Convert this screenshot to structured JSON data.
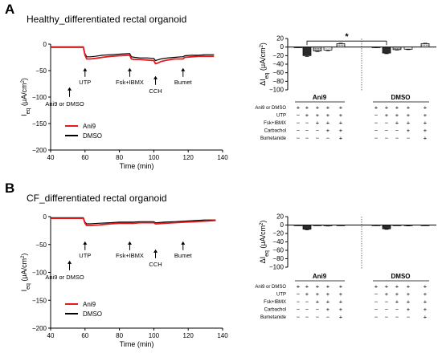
{
  "panels": [
    {
      "letter": "A",
      "title": "Healthy_differentiated rectal organoid",
      "trace": {
        "x_label": "Time (min)",
        "y_label_main": "I",
        "y_label_sub": "eq",
        "y_label_unit": "(μA/cm",
        "y_label_sup": "2",
        "y_label_close": ")",
        "x_ticks": [
          40,
          60,
          80,
          100,
          120,
          140
        ],
        "y_ticks": [
          0,
          -50,
          -100,
          -150,
          -200
        ],
        "xlim": [
          40,
          140
        ],
        "ylim": [
          -200,
          0
        ],
        "annotations": [
          {
            "text": "Ani9 or DMSO",
            "x": 51
          },
          {
            "text": "UTP",
            "x": 60
          },
          {
            "text": "Fsk+IBMX",
            "x": 86
          },
          {
            "text": "CCH",
            "x": 101
          },
          {
            "text": "Bumet",
            "x": 117
          }
        ],
        "legend": [
          "Ani9",
          "DMSO"
        ],
        "series": [
          {
            "name": "Ani9",
            "color": "#e8191c",
            "x": [
              40,
              59,
              60,
              61,
              63,
              66,
              70,
              75,
              80,
              85,
              86,
              87,
              89,
              92,
              96,
              100,
              101,
              102,
              104,
              108,
              112,
              116,
              117,
              118,
              122,
              126,
              130,
              135
            ],
            "y": [
              -6,
              -6,
              -21,
              -28,
              -28,
              -27,
              -25,
              -23,
              -22,
              -21,
              -21,
              -28,
              -29,
              -29,
              -30,
              -31,
              -37,
              -36,
              -33,
              -30,
              -28,
              -28,
              -28,
              -25,
              -24,
              -23,
              -23,
              -23
            ]
          },
          {
            "name": "DMSO",
            "color": "#000000",
            "x": [
              40,
              59,
              60,
              61,
              63,
              66,
              70,
              75,
              80,
              85,
              86,
              87,
              89,
              92,
              96,
              100,
              101,
              102,
              104,
              108,
              112,
              116,
              117,
              118,
              122,
              126,
              130,
              135
            ],
            "y": [
              -5,
              -5,
              -18,
              -24,
              -24,
              -23,
              -21,
              -20,
              -19,
              -18,
              -18,
              -24,
              -25,
              -26,
              -26,
              -27,
              -31,
              -30,
              -28,
              -26,
              -25,
              -24,
              -24,
              -22,
              -21,
              -21,
              -20,
              -20
            ]
          }
        ]
      },
      "bar": {
        "y_ticks": [
          20,
          0,
          -20,
          -40,
          -60,
          -80,
          -100
        ],
        "ylim": [
          -100,
          20
        ],
        "y_label_delta": "ΔI",
        "y_label_sub": "eq",
        "y_label_unit": "(μA/cm",
        "y_label_sup": "2",
        "y_label_close": ")",
        "significance": "*",
        "groups": [
          {
            "label": "Ani9",
            "values": [
              -0.5,
              -20,
              -9,
              -7,
              8
            ],
            "errors": [
              0.5,
              2,
              1.5,
              1.5,
              1
            ]
          },
          {
            "label": "DMSO",
            "values": [
              -0.5,
              -14,
              -6,
              -5,
              8
            ],
            "errors": [
              0.5,
              1.5,
              1,
              1,
              1
            ]
          }
        ],
        "conditions": [
          "Ani9 or DMSO",
          "UTP",
          "Fsk+IBMX",
          "Carbachol",
          "Bumetanide"
        ],
        "sign_matrix": [
          [
            "+",
            "+",
            "+",
            "+",
            "+"
          ],
          [
            "−",
            "+",
            "+",
            "+",
            "+"
          ],
          [
            "−",
            "−",
            "+",
            "+",
            "+"
          ],
          [
            "−",
            "−",
            "−",
            "+",
            "+"
          ],
          [
            "−",
            "−",
            "−",
            "−",
            "+"
          ]
        ]
      }
    },
    {
      "letter": "B",
      "title": "CF_differentiated rectal organoid",
      "trace": {
        "x_label": "Time (min)",
        "y_label_main": "I",
        "y_label_sub": "eq",
        "y_label_unit": "(μA/cm",
        "y_label_sup": "2",
        "y_label_close": ")",
        "x_ticks": [
          40,
          60,
          80,
          100,
          120,
          140
        ],
        "y_ticks": [
          0,
          -50,
          -100,
          -150,
          -200
        ],
        "xlim": [
          40,
          140
        ],
        "ylim": [
          -200,
          0
        ],
        "annotations": [
          {
            "text": "Ani9 or DMSO",
            "x": 51
          },
          {
            "text": "UTP",
            "x": 60
          },
          {
            "text": "Fsk+IBMX",
            "x": 86
          },
          {
            "text": "CCH",
            "x": 101
          },
          {
            "text": "Bumet",
            "x": 117
          }
        ],
        "legend": [
          "Ani9",
          "DMSO"
        ],
        "series": [
          {
            "name": "Ani9",
            "color": "#e8191c",
            "x": [
              40,
              59,
              60,
              61,
              63,
              68,
              75,
              80,
              85,
              86,
              88,
              92,
              96,
              100,
              101,
              102,
              106,
              112,
              118,
              124,
              130,
              136
            ],
            "y": [
              -3,
              -3,
              -12,
              -16,
              -16,
              -15,
              -13,
              -12,
              -12,
              -12,
              -12,
              -11,
              -11,
              -11,
              -13,
              -13,
              -12,
              -11,
              -10,
              -9,
              -8,
              -7
            ]
          },
          {
            "name": "DMSO",
            "color": "#000000",
            "x": [
              40,
              59,
              60,
              61,
              63,
              68,
              75,
              80,
              85,
              86,
              88,
              92,
              96,
              100,
              101,
              102,
              106,
              112,
              118,
              124,
              130,
              136
            ],
            "y": [
              -2,
              -2,
              -10,
              -13,
              -13,
              -12,
              -11,
              -10,
              -10,
              -10,
              -10,
              -9,
              -9,
              -9,
              -11,
              -11,
              -10,
              -9,
              -8,
              -7,
              -6,
              -6
            ]
          }
        ]
      },
      "bar": {
        "y_ticks": [
          20,
          0,
          -20,
          -40,
          -60,
          -80,
          -100
        ],
        "ylim": [
          -100,
          20
        ],
        "y_label_delta": "ΔI",
        "y_label_sub": "eq",
        "y_label_unit": "(μA/cm",
        "y_label_sup": "2",
        "y_label_close": ")",
        "significance": "",
        "groups": [
          {
            "label": "Ani9",
            "values": [
              -0.5,
              -10,
              -0.5,
              -2,
              -0.5
            ],
            "errors": [
              0.3,
              1.5,
              0.3,
              0.5,
              0.3
            ]
          },
          {
            "label": "DMSO",
            "values": [
              -0.5,
              -9,
              -0.5,
              -1.5,
              -0.5
            ],
            "errors": [
              0.3,
              1.2,
              0.3,
              0.5,
              0.3
            ]
          }
        ],
        "conditions": [
          "Ani9 or DMSO",
          "UTP",
          "Fsk+IBMX",
          "Carbachol",
          "Bumetanide"
        ],
        "sign_matrix": [
          [
            "+",
            "+",
            "+",
            "+",
            "+"
          ],
          [
            "−",
            "+",
            "+",
            "+",
            "+"
          ],
          [
            "−",
            "−",
            "+",
            "+",
            "+"
          ],
          [
            "−",
            "−",
            "−",
            "+",
            "+"
          ],
          [
            "−",
            "−",
            "−",
            "−",
            "+"
          ]
        ]
      }
    }
  ],
  "bar_styles": [
    "#ffffff",
    "#2b2b2b",
    "#a9a9a9",
    "#e0e0e0",
    "#ececec"
  ],
  "chart_data": [
    {
      "type": "line",
      "title": "Healthy_differentiated rectal organoid",
      "xlabel": "Time (min)",
      "ylabel": "Ieq (μA/cm2)",
      "xlim": [
        40,
        140
      ],
      "ylim": [
        -200,
        0
      ],
      "legend": [
        "Ani9",
        "DMSO"
      ]
    },
    {
      "type": "bar",
      "title": "Healthy_differentiated rectal organoid",
      "ylabel": "ΔIeq (μA/cm2)",
      "categories": [
        "Ani9",
        "DMSO"
      ],
      "ylim": [
        -100,
        20
      ]
    },
    {
      "type": "line",
      "title": "CF_differentiated rectal organoid",
      "xlabel": "Time (min)",
      "ylabel": "Ieq (μA/cm2)",
      "xlim": [
        40,
        140
      ],
      "ylim": [
        -200,
        0
      ],
      "legend": [
        "Ani9",
        "DMSO"
      ]
    },
    {
      "type": "bar",
      "title": "CF_differentiated rectal organoid",
      "ylabel": "ΔIeq (μA/cm2)",
      "categories": [
        "Ani9",
        "DMSO"
      ],
      "ylim": [
        -100,
        20
      ]
    }
  ]
}
